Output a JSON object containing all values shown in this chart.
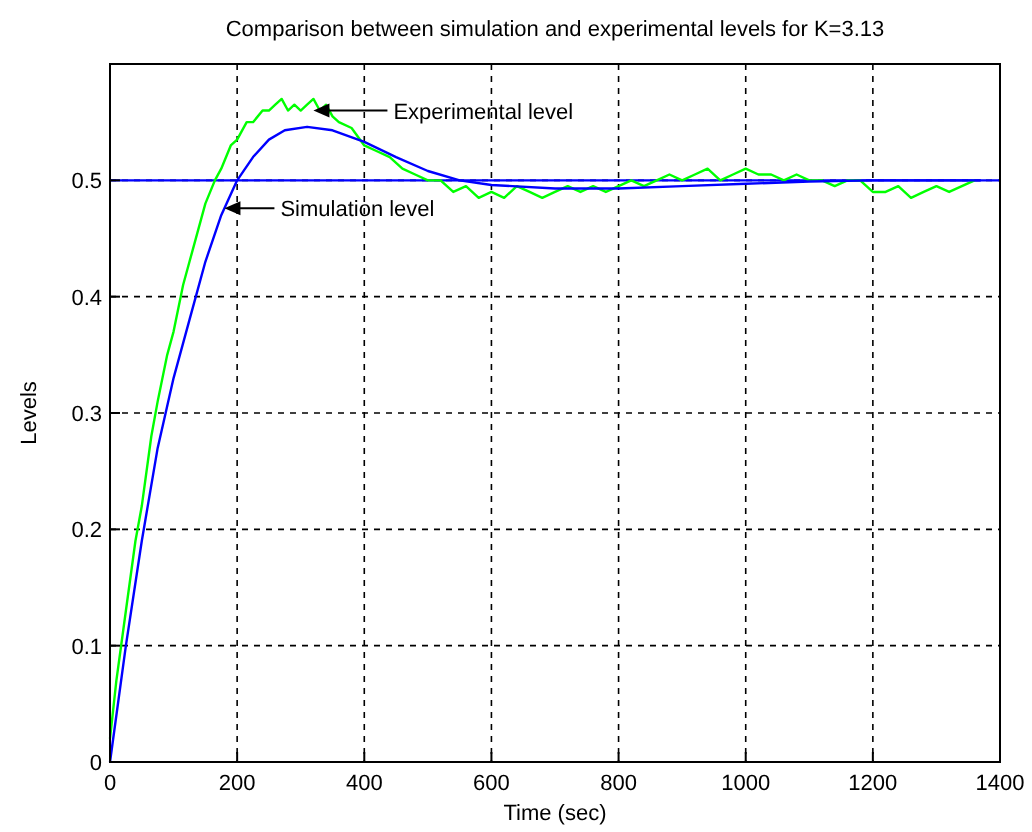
{
  "chart_data": {
    "type": "line",
    "title": "Comparison between simulation and experimental levels for K=3.13",
    "xlabel": "Time (sec)",
    "ylabel": "Levels",
    "xlim": [
      0,
      1400
    ],
    "ylim": [
      0,
      0.6
    ],
    "xticks": [
      0,
      200,
      400,
      600,
      800,
      1000,
      1200,
      1400
    ],
    "yticks": [
      0,
      0.1,
      0.2,
      0.3,
      0.4,
      0.5
    ],
    "grid": true,
    "line_style": "solid",
    "marker": "none",
    "series": [
      {
        "color": "#00ff00",
        "x": [
          0,
          10,
          25,
          40,
          50,
          65,
          75,
          90,
          100,
          115,
          125,
          140,
          150,
          165,
          175,
          190,
          200,
          215,
          225,
          240,
          250,
          260,
          270,
          280,
          290,
          300,
          310,
          320,
          330,
          340,
          350,
          360,
          380,
          400,
          420,
          440,
          460,
          480,
          500,
          520,
          540,
          560,
          580,
          600,
          620,
          640,
          660,
          680,
          700,
          720,
          740,
          760,
          780,
          800,
          820,
          840,
          860,
          880,
          900,
          920,
          940,
          960,
          980,
          1000,
          1020,
          1040,
          1060,
          1080,
          1100,
          1120,
          1140,
          1160,
          1180,
          1200,
          1220,
          1240,
          1260,
          1280,
          1300,
          1320,
          1340,
          1360
        ],
        "values": [
          0.02,
          0.07,
          0.13,
          0.19,
          0.22,
          0.28,
          0.31,
          0.35,
          0.37,
          0.41,
          0.43,
          0.46,
          0.48,
          0.5,
          0.51,
          0.53,
          0.535,
          0.55,
          0.55,
          0.56,
          0.56,
          0.565,
          0.57,
          0.56,
          0.565,
          0.56,
          0.565,
          0.57,
          0.56,
          0.565,
          0.555,
          0.55,
          0.545,
          0.53,
          0.525,
          0.52,
          0.51,
          0.505,
          0.5,
          0.5,
          0.49,
          0.495,
          0.485,
          0.49,
          0.485,
          0.495,
          0.49,
          0.485,
          0.49,
          0.495,
          0.49,
          0.495,
          0.49,
          0.495,
          0.5,
          0.495,
          0.5,
          0.505,
          0.5,
          0.505,
          0.51,
          0.5,
          0.505,
          0.51,
          0.505,
          0.505,
          0.5,
          0.505,
          0.5,
          0.5,
          0.495,
          0.5,
          0.5,
          0.49,
          0.49,
          0.495,
          0.485,
          0.49,
          0.495,
          0.49,
          0.495,
          0.5
        ]
      },
      {
        "color": "#0000ff",
        "x": [
          0,
          25,
          50,
          75,
          100,
          125,
          150,
          175,
          200,
          225,
          250,
          275,
          310,
          350,
          400,
          450,
          500,
          550,
          600,
          700,
          800,
          900,
          1000,
          1100,
          1200,
          1300,
          1370
        ],
        "values": [
          0,
          0.1,
          0.19,
          0.27,
          0.33,
          0.38,
          0.43,
          0.47,
          0.5,
          0.52,
          0.535,
          0.543,
          0.546,
          0.543,
          0.533,
          0.52,
          0.508,
          0.5,
          0.496,
          0.493,
          0.493,
          0.495,
          0.497,
          0.499,
          0.5,
          0.5,
          0.5
        ]
      }
    ],
    "ref_lines": [
      {
        "axis": "y",
        "value": 0.5,
        "color": "#0000ff"
      }
    ],
    "annotations": [
      {
        "text": "Experimental level",
        "x": 320,
        "y": 0.56
      },
      {
        "text": "Simulation level",
        "x": 180,
        "y": 0.476
      }
    ]
  }
}
